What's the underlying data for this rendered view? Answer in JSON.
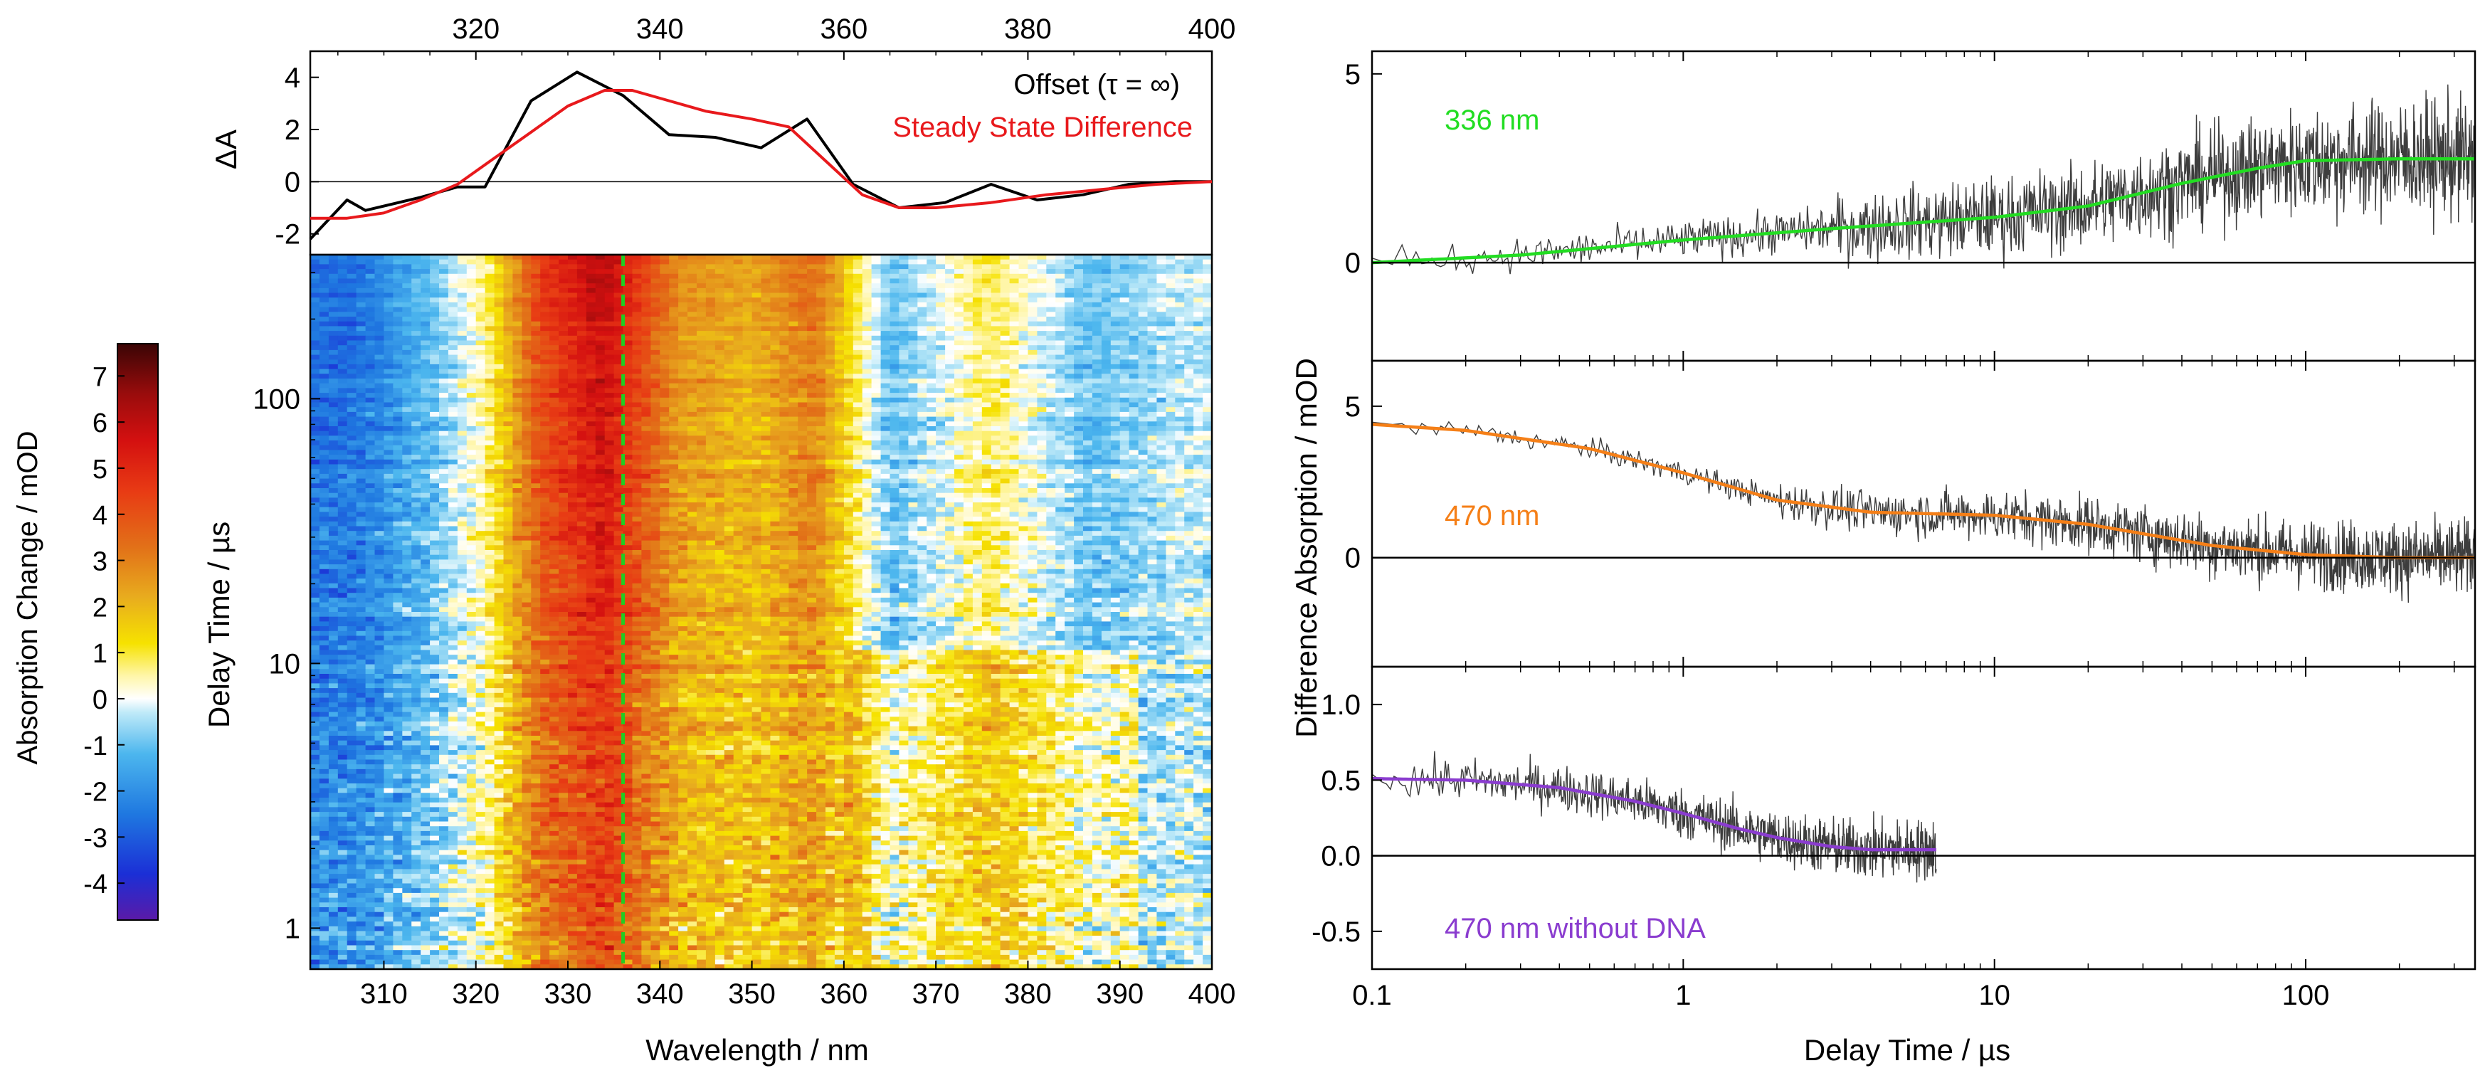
{
  "chart_data": [
    {
      "panel": "top-spectra",
      "type": "line",
      "ylabel": "ΔA",
      "xaxis": "top",
      "xlim": [
        302,
        400
      ],
      "ylim": [
        -2.8,
        5
      ],
      "xticks": [
        320,
        340,
        360,
        380,
        400
      ],
      "yticks": [
        4,
        2,
        0,
        -2
      ],
      "xtick_labels": [
        "320",
        "340",
        "360",
        "380",
        "400"
      ],
      "ytick_labels": [
        "4",
        "2",
        "0",
        "-2"
      ],
      "series": [
        {
          "name": "Offset (τ = ∞)",
          "color": "#000000",
          "x": [
            302,
            306,
            308,
            314,
            318,
            321,
            326,
            331,
            336,
            341,
            346,
            351,
            356,
            361,
            366,
            371,
            376,
            381,
            386,
            391,
            396,
            400
          ],
          "y": [
            -2.2,
            -0.7,
            -1.1,
            -0.6,
            -0.2,
            -0.2,
            3.1,
            4.2,
            3.3,
            1.8,
            1.7,
            1.3,
            2.4,
            -0.1,
            -1.0,
            -0.8,
            -0.1,
            -0.7,
            -0.5,
            -0.1,
            0.0,
            0.0
          ]
        },
        {
          "name": "Steady State Difference",
          "color": "#e8191c",
          "x": [
            302,
            306,
            310,
            314,
            318,
            322,
            326,
            330,
            334,
            337,
            340,
            345,
            350,
            354,
            358,
            362,
            366,
            370,
            376,
            382,
            388,
            394,
            400
          ],
          "y": [
            -1.4,
            -1.4,
            -1.2,
            -0.7,
            -0.1,
            0.9,
            1.9,
            2.9,
            3.5,
            3.5,
            3.2,
            2.7,
            2.4,
            2.1,
            0.8,
            -0.5,
            -1.0,
            -1.0,
            -0.8,
            -0.5,
            -0.3,
            -0.1,
            0.0
          ]
        }
      ]
    },
    {
      "panel": "heatmap",
      "type": "heatmap",
      "xlabel": "Wavelength / nm",
      "ylabel": "Delay Time / µs",
      "xlim": [
        302,
        400
      ],
      "ylim": [
        0.7,
        350
      ],
      "yscale": "log",
      "xticks": [
        310,
        320,
        330,
        340,
        350,
        360,
        370,
        380,
        390,
        400
      ],
      "xtick_labels": [
        "310",
        "320",
        "330",
        "340",
        "350",
        "360",
        "370",
        "380",
        "390",
        "400"
      ],
      "yticks": [
        1,
        10,
        100
      ],
      "ytick_labels": [
        "1",
        "10",
        "100"
      ],
      "marker_wavelength": 336,
      "marker_color": "#22cc22",
      "bands": [
        {
          "x0": 302,
          "x1": 312,
          "value": -2.5
        },
        {
          "x0": 312,
          "x1": 318,
          "value": -1.0
        },
        {
          "x0": 318,
          "x1": 324,
          "value": 0.5
        },
        {
          "x0": 324,
          "x1": 330,
          "value": 4.0
        },
        {
          "x0": 330,
          "x1": 338,
          "value": 5.5
        },
        {
          "x0": 338,
          "x1": 346,
          "value": 2.5
        },
        {
          "x0": 346,
          "x1": 354,
          "value": 2.0
        },
        {
          "x0": 354,
          "x1": 360,
          "value": 3.0
        },
        {
          "x0": 360,
          "x1": 370,
          "value": -1.0
        },
        {
          "x0": 370,
          "x1": 382,
          "value": 0.8
        },
        {
          "x0": 382,
          "x1": 392,
          "value": -1.0
        },
        {
          "x0": 392,
          "x1": 400,
          "value": -0.3
        }
      ]
    },
    {
      "panel": "colorbar",
      "type": "colorbar",
      "label": "Absorption Change / mOD",
      "range": [
        -4.8,
        7.7
      ],
      "ticks": [
        7,
        6,
        5,
        4,
        3,
        2,
        1,
        0,
        -1,
        -2,
        -3,
        -4
      ],
      "tick_labels": [
        "7",
        "6",
        "5",
        "4",
        "3",
        "2",
        "1",
        "0",
        "-1",
        "-2",
        "-3",
        "-4"
      ],
      "stops": [
        {
          "v": -4.8,
          "c": "#5a1aa8"
        },
        {
          "v": -3.8,
          "c": "#1b2fd6"
        },
        {
          "v": -2.5,
          "c": "#1f78e0"
        },
        {
          "v": -1.2,
          "c": "#4cb6ee"
        },
        {
          "v": -0.3,
          "c": "#bfeaf8"
        },
        {
          "v": 0.0,
          "c": "#ffffff"
        },
        {
          "v": 0.5,
          "c": "#fff6a8"
        },
        {
          "v": 1.2,
          "c": "#f6e200"
        },
        {
          "v": 2.2,
          "c": "#e8ac1e"
        },
        {
          "v": 3.3,
          "c": "#e27018"
        },
        {
          "v": 4.5,
          "c": "#e83b14"
        },
        {
          "v": 5.6,
          "c": "#d41010"
        },
        {
          "v": 6.6,
          "c": "#9a0c0c"
        },
        {
          "v": 7.7,
          "c": "#3a0505"
        }
      ]
    },
    {
      "panel": "kinetic-336",
      "type": "line",
      "label": "336 nm",
      "color": "#22dd22",
      "xscale": "log",
      "xlim": [
        0.1,
        350
      ],
      "ylim": [
        -2.6,
        5.6
      ],
      "yticks": [
        0,
        5
      ],
      "ytick_labels": [
        "0",
        "5"
      ],
      "fit": {
        "x": [
          0.1,
          0.3,
          1,
          3,
          10,
          20,
          40,
          70,
          100,
          200,
          350
        ],
        "y": [
          0.0,
          0.2,
          0.6,
          0.9,
          1.2,
          1.5,
          2.1,
          2.5,
          2.7,
          2.75,
          2.75
        ]
      }
    },
    {
      "panel": "kinetic-470",
      "type": "line",
      "label": "470 nm",
      "color": "#f57f17",
      "xscale": "log",
      "xlim": [
        0.1,
        350
      ],
      "ylim": [
        -3.6,
        6.5
      ],
      "yticks": [
        0,
        5
      ],
      "ytick_labels": [
        "0",
        "5"
      ],
      "fit": {
        "x": [
          0.1,
          0.2,
          0.5,
          1,
          2,
          4,
          10,
          20,
          50,
          100,
          200,
          350
        ],
        "y": [
          4.4,
          4.2,
          3.6,
          2.8,
          1.9,
          1.5,
          1.4,
          1.1,
          0.4,
          0.1,
          0.0,
          0.0
        ]
      }
    },
    {
      "panel": "kinetic-470-noDNA",
      "type": "line",
      "label": "470 nm without DNA",
      "color": "#8a3ccf",
      "xscale": "log",
      "xlim": [
        0.1,
        350
      ],
      "ylim": [
        -0.75,
        1.25
      ],
      "yticks": [
        1.0,
        0.5,
        0.0,
        -0.5
      ],
      "ytick_labels": [
        "1.0",
        "0.5",
        "0.0",
        "-0.5"
      ],
      "data_end_x": 6.5,
      "fit": {
        "x": [
          0.1,
          0.2,
          0.4,
          0.7,
          1,
          1.5,
          2,
          3,
          4,
          6.5
        ],
        "y": [
          0.51,
          0.5,
          0.45,
          0.36,
          0.28,
          0.18,
          0.12,
          0.06,
          0.04,
          0.04
        ]
      }
    }
  ],
  "labels": {
    "top_legend_offset": "Offset (τ = ∞)",
    "top_legend_steady": "Steady State Difference",
    "top_ylabel": "ΔA",
    "heatmap_xlabel": "Wavelength / nm",
    "heatmap_ylabel": "Delay Time / µs",
    "colorbar_label": "Absorption Change / mOD",
    "kinetics_xlabel": "Delay Time / µs",
    "kinetics_ylabel": "Difference Absorption / mOD",
    "kinetics_xtick_labels": [
      "0.1",
      "1",
      "10",
      "100"
    ],
    "kinetics_xticks": [
      0.1,
      1,
      10,
      100
    ],
    "label_336": "336 nm",
    "label_470": "470 nm",
    "label_470_nodna": "470 nm without DNA"
  },
  "colors": {
    "axis": "#000000",
    "noise": "#3d3d3d",
    "offset": "#000000",
    "steady": "#e8191c"
  }
}
